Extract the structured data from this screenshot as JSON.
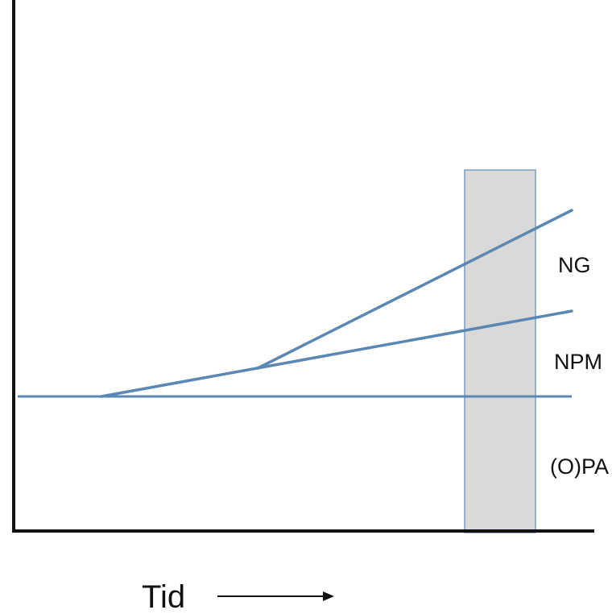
{
  "diagram": {
    "region_labels": {
      "ng": "NG",
      "npm": "NPM",
      "opa": "(O)PA"
    },
    "x_axis_label": "Tid",
    "colors": {
      "line": "#5b87b5",
      "axis": "#111111",
      "band_fill": "#d9d9d9",
      "band_border": "#7c9cc4"
    },
    "icons": {
      "time_arrow": "right-arrow-icon"
    }
  }
}
